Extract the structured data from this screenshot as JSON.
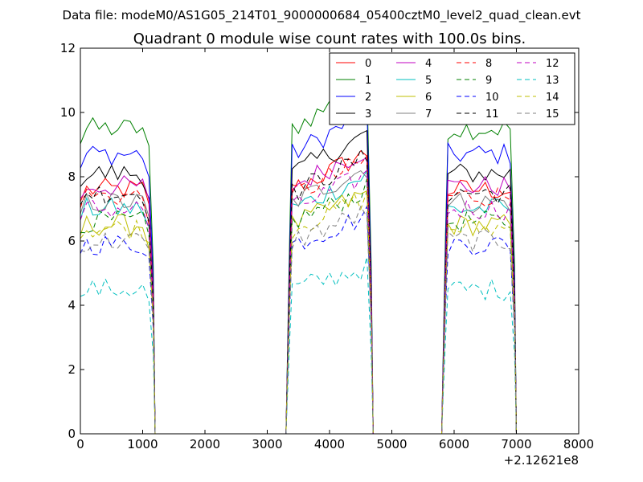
{
  "chart_data": {
    "type": "line",
    "suptitle": "Data file: modeM0/AS1G05_214T01_9000000684_05400cztM0_level2_quad_clean.evt",
    "title": "Quadrant 0 module wise count rates with 100.0s bins.",
    "xlabel": "",
    "ylabel": "",
    "x_offset_label": "+2.12621e8",
    "xlim": [
      0,
      8000
    ],
    "ylim": [
      0,
      12
    ],
    "xticks": [
      0,
      1000,
      2000,
      3000,
      4000,
      5000,
      6000,
      7000,
      8000
    ],
    "xtick_labels": [
      "0",
      "1000",
      "2000",
      "3000",
      "4000",
      "5000",
      "6000",
      "7000",
      "8000"
    ],
    "yticks": [
      0,
      2,
      4,
      6,
      8,
      10,
      12
    ],
    "ytick_labels": [
      "0",
      "2",
      "4",
      "6",
      "8",
      "10",
      "12"
    ],
    "grid": false,
    "legend_position": "top-right",
    "legend_columns": 4,
    "series": [
      {
        "name": "0",
        "color": "#ff0000",
        "dash": "solid",
        "level": 7.6
      },
      {
        "name": "1",
        "color": "#008000",
        "dash": "solid",
        "level": 9.5
      },
      {
        "name": "2",
        "color": "#0000ff",
        "dash": "solid",
        "level": 8.7
      },
      {
        "name": "3",
        "color": "#000000",
        "dash": "solid",
        "level": 8.1
      },
      {
        "name": "4",
        "color": "#c000c0",
        "dash": "solid",
        "level": 7.7
      },
      {
        "name": "5",
        "color": "#00bfbf",
        "dash": "solid",
        "level": 7.0
      },
      {
        "name": "6",
        "color": "#bfbf00",
        "dash": "solid",
        "level": 6.5
      },
      {
        "name": "7",
        "color": "#808080",
        "dash": "solid",
        "level": 7.2
      },
      {
        "name": "8",
        "color": "#ff0000",
        "dash": "dashed",
        "level": 7.4
      },
      {
        "name": "9",
        "color": "#008000",
        "dash": "dashed",
        "level": 6.6
      },
      {
        "name": "10",
        "color": "#0000ff",
        "dash": "dashed",
        "level": 5.9
      },
      {
        "name": "11",
        "color": "#000000",
        "dash": "dashed",
        "level": 7.5
      },
      {
        "name": "12",
        "color": "#c000c0",
        "dash": "dashed",
        "level": 7.0
      },
      {
        "name": "13",
        "color": "#00bfbf",
        "dash": "dashed",
        "level": 4.5
      },
      {
        "name": "14",
        "color": "#bfbf00",
        "dash": "dashed",
        "level": 6.4
      },
      {
        "name": "15",
        "color": "#808080",
        "dash": "dashed",
        "level": 6.0
      }
    ],
    "segments": [
      {
        "start": 100,
        "end": 1100,
        "step": 100
      },
      {
        "start": 3400,
        "end": 4600,
        "step": 100
      },
      {
        "start": 5900,
        "end": 6900,
        "step": 100
      }
    ],
    "gaps": [
      [
        1200,
        3300
      ],
      [
        4700,
        5800
      ]
    ]
  }
}
